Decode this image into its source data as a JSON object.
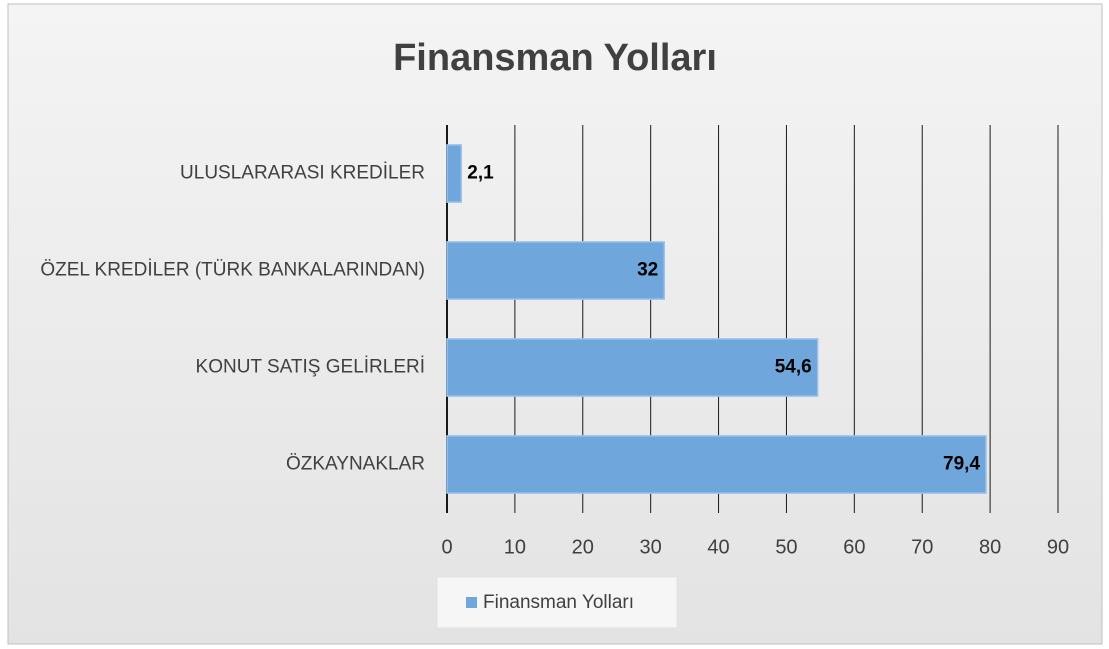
{
  "chart_data": {
    "type": "bar",
    "orientation": "horizontal",
    "title": "Finansman Yolları",
    "categories": [
      "ULUSLARARASI KREDİLER",
      "ÖZEL KREDİLER (TÜRK BANKALARINDAN)",
      "KONUT SATIŞ GELİRLERİ",
      "ÖZKAYNAKLAR"
    ],
    "series": [
      {
        "name": "Finansman Yolları",
        "color": "#6fa6db",
        "values": [
          2.1,
          32,
          54.6,
          79.4
        ],
        "value_labels": [
          "2,1",
          "32",
          "54,6",
          "79,4"
        ]
      }
    ],
    "xlim": [
      0,
      90
    ],
    "xticks": [
      0,
      10,
      20,
      30,
      40,
      50,
      60,
      70,
      80,
      90
    ],
    "grid": true,
    "legend": "bottom"
  }
}
